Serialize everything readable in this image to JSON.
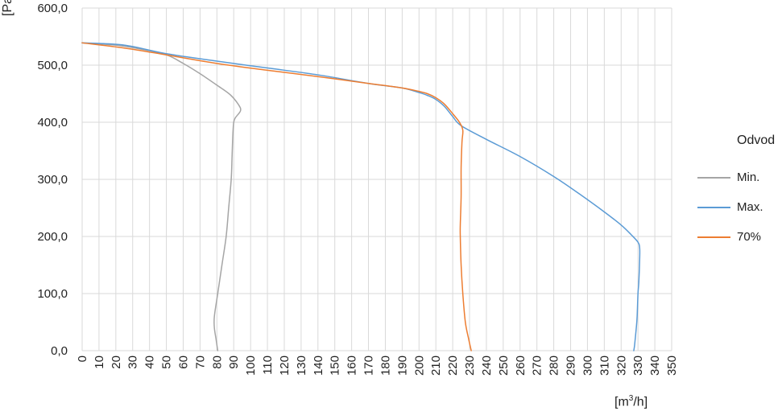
{
  "chart_data": {
    "type": "line",
    "xlabel_prefix": "[m",
    "xlabel_sup": "3",
    "xlabel_suffix": "/h]",
    "ylabel": "[Pa]",
    "xlim": [
      0,
      350
    ],
    "ylim": [
      0,
      600
    ],
    "x_ticks": [
      "0",
      "10",
      "20",
      "30",
      "40",
      "50",
      "60",
      "70",
      "80",
      "90",
      "100",
      "110",
      "120",
      "130",
      "140",
      "150",
      "160",
      "170",
      "180",
      "190",
      "200",
      "210",
      "220",
      "230",
      "240",
      "250",
      "260",
      "270",
      "280",
      "290",
      "300",
      "310",
      "320",
      "330",
      "340",
      "350"
    ],
    "y_ticks": [
      "0,0",
      "100,0",
      "200,0",
      "300,0",
      "400,0",
      "500,0",
      "600,0"
    ],
    "y_tick_values": [
      0,
      100,
      200,
      300,
      400,
      500,
      600
    ],
    "grid": true,
    "legend_title": "Odvod",
    "legend_position": "right",
    "series": [
      {
        "name": "Min.",
        "color": "#a5a5a5",
        "points": [
          [
            0,
            539
          ],
          [
            20,
            535
          ],
          [
            35,
            528
          ],
          [
            50,
            518
          ],
          [
            60,
            503
          ],
          [
            70,
            485
          ],
          [
            80,
            465
          ],
          [
            88,
            448
          ],
          [
            93,
            430
          ],
          [
            94,
            420
          ],
          [
            91,
            408
          ],
          [
            90,
            400
          ],
          [
            89.5,
            380
          ],
          [
            89,
            340
          ],
          [
            88.5,
            300
          ],
          [
            87,
            250
          ],
          [
            85.5,
            200
          ],
          [
            83,
            150
          ],
          [
            80.5,
            100
          ],
          [
            78.5,
            60
          ],
          [
            78.5,
            40
          ],
          [
            79.5,
            20
          ],
          [
            80.5,
            0
          ]
        ]
      },
      {
        "name": "Max.",
        "color": "#5b9bd5",
        "points": [
          [
            0,
            539
          ],
          [
            25,
            535
          ],
          [
            50,
            520
          ],
          [
            80,
            507
          ],
          [
            110,
            495
          ],
          [
            140,
            483
          ],
          [
            170,
            468
          ],
          [
            190,
            460
          ],
          [
            200,
            452
          ],
          [
            205,
            447
          ],
          [
            210,
            440
          ],
          [
            215,
            428
          ],
          [
            220,
            410
          ],
          [
            225,
            394
          ],
          [
            240,
            370
          ],
          [
            260,
            340
          ],
          [
            280,
            305
          ],
          [
            295,
            275
          ],
          [
            310,
            243
          ],
          [
            320,
            220
          ],
          [
            326,
            203
          ],
          [
            330,
            190
          ],
          [
            331,
            180
          ],
          [
            331,
            160
          ],
          [
            330.5,
            120
          ],
          [
            330,
            100
          ],
          [
            329.5,
            60
          ],
          [
            329,
            40
          ],
          [
            328,
            10
          ],
          [
            327.5,
            0
          ]
        ]
      },
      {
        "name": "70%",
        "color": "#ed7d31",
        "points": [
          [
            0,
            539
          ],
          [
            25,
            530
          ],
          [
            50,
            518
          ],
          [
            80,
            503
          ],
          [
            110,
            491
          ],
          [
            140,
            480
          ],
          [
            170,
            468
          ],
          [
            190,
            460
          ],
          [
            200,
            454
          ],
          [
            205,
            450
          ],
          [
            210,
            443
          ],
          [
            215,
            432
          ],
          [
            220,
            415
          ],
          [
            224,
            400
          ],
          [
            226,
            386
          ],
          [
            225.5,
            365
          ],
          [
            225,
            320
          ],
          [
            225,
            270
          ],
          [
            224.5,
            220
          ],
          [
            224.5,
            200
          ],
          [
            225,
            150
          ],
          [
            226,
            100
          ],
          [
            227.5,
            50
          ],
          [
            229.5,
            20
          ],
          [
            231,
            0
          ]
        ]
      }
    ]
  }
}
